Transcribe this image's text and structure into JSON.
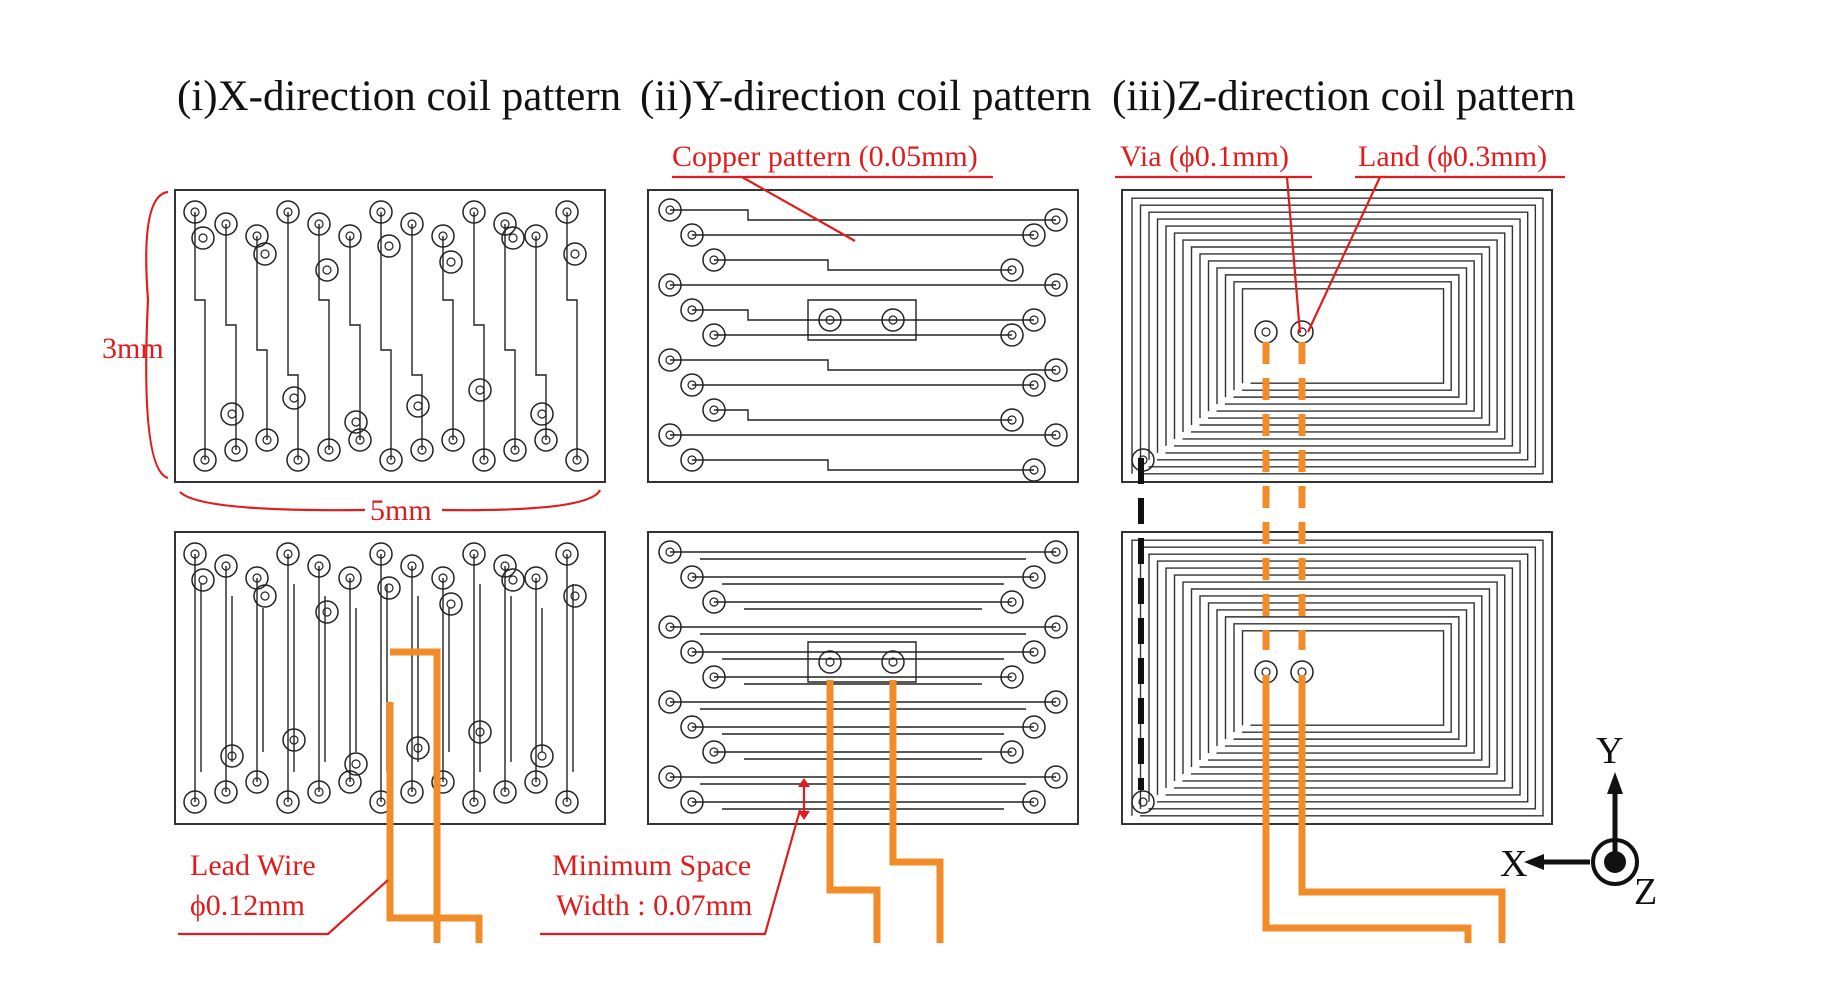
{
  "panels": {
    "x_title": "(i)X-direction coil pattern",
    "y_title": "(ii)Y-direction coil pattern",
    "z_title": "(iii)Z-direction coil pattern"
  },
  "annotations": {
    "copper_pattern": "Copper pattern (0.05mm)",
    "via": "Via (ϕ0.1mm)",
    "land": "Land (ϕ0.3mm)",
    "height": "3mm",
    "width": "5mm",
    "lead_wire_line1": "Lead Wire",
    "lead_wire_line2": "ϕ0.12mm",
    "min_space_line1": "Minimum Space",
    "min_space_line2": "Width : 0.07mm"
  },
  "axes": {
    "x": "X",
    "y": "Y",
    "z": "Z"
  },
  "colors": {
    "annotation": "#e21c1c",
    "lead_wire": "#f28c28",
    "trace": "#222222"
  }
}
